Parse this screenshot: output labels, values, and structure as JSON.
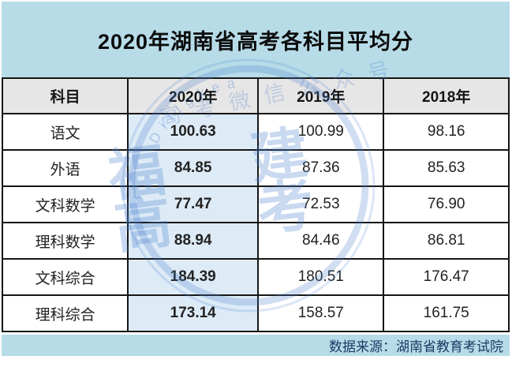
{
  "title": "2020年湖南省高考各科目平均分",
  "table": {
    "headers": [
      "科目",
      "2020年",
      "2019年",
      "2018年"
    ],
    "rows": [
      {
        "subject": "语文",
        "y2020": "100.63",
        "y2019": "100.99",
        "y2018": "98.16"
      },
      {
        "subject": "外语",
        "y2020": "84.85",
        "y2019": "87.36",
        "y2018": "85.63"
      },
      {
        "subject": "文科数学",
        "y2020": "77.47",
        "y2019": "72.53",
        "y2018": "76.90"
      },
      {
        "subject": "理科数学",
        "y2020": "88.94",
        "y2019": "84.46",
        "y2018": "86.81"
      },
      {
        "subject": "文科综合",
        "y2020": "184.39",
        "y2019": "180.51",
        "y2018": "176.47"
      },
      {
        "subject": "理科综合",
        "y2020": "173.14",
        "y2019": "158.57",
        "y2018": "161.75"
      }
    ]
  },
  "footer": {
    "source": "数据来源：湖南省教育考试院"
  },
  "watermark": {
    "big_chars": [
      "福",
      "建",
      "高",
      "考"
    ],
    "diagonal_text": "高考微信公众号",
    "arc_text": "Difjgkea"
  },
  "colors": {
    "title_footer_bg": "#B7DCE8",
    "header_row_bg": "#E7E6E6",
    "highlight_column_bg": "#DDEBF7",
    "table_border": "#161616",
    "footer_text": "#1F3864",
    "watermark_blue": "#4D80CC"
  },
  "chart_data": {
    "type": "table",
    "title": "2020年湖南省高考各科目平均分",
    "categories": [
      "语文",
      "外语",
      "文科数学",
      "理科数学",
      "文科综合",
      "理科综合"
    ],
    "series": [
      {
        "name": "2020年",
        "values": [
          100.63,
          84.85,
          77.47,
          88.94,
          184.39,
          173.14
        ]
      },
      {
        "name": "2019年",
        "values": [
          100.99,
          87.36,
          72.53,
          84.46,
          180.51,
          158.57
        ]
      },
      {
        "name": "2018年",
        "values": [
          98.16,
          85.63,
          76.9,
          86.81,
          176.47,
          161.75
        ]
      }
    ],
    "highlighted_series": "2020年",
    "source": "数据来源：湖南省教育考试院"
  }
}
